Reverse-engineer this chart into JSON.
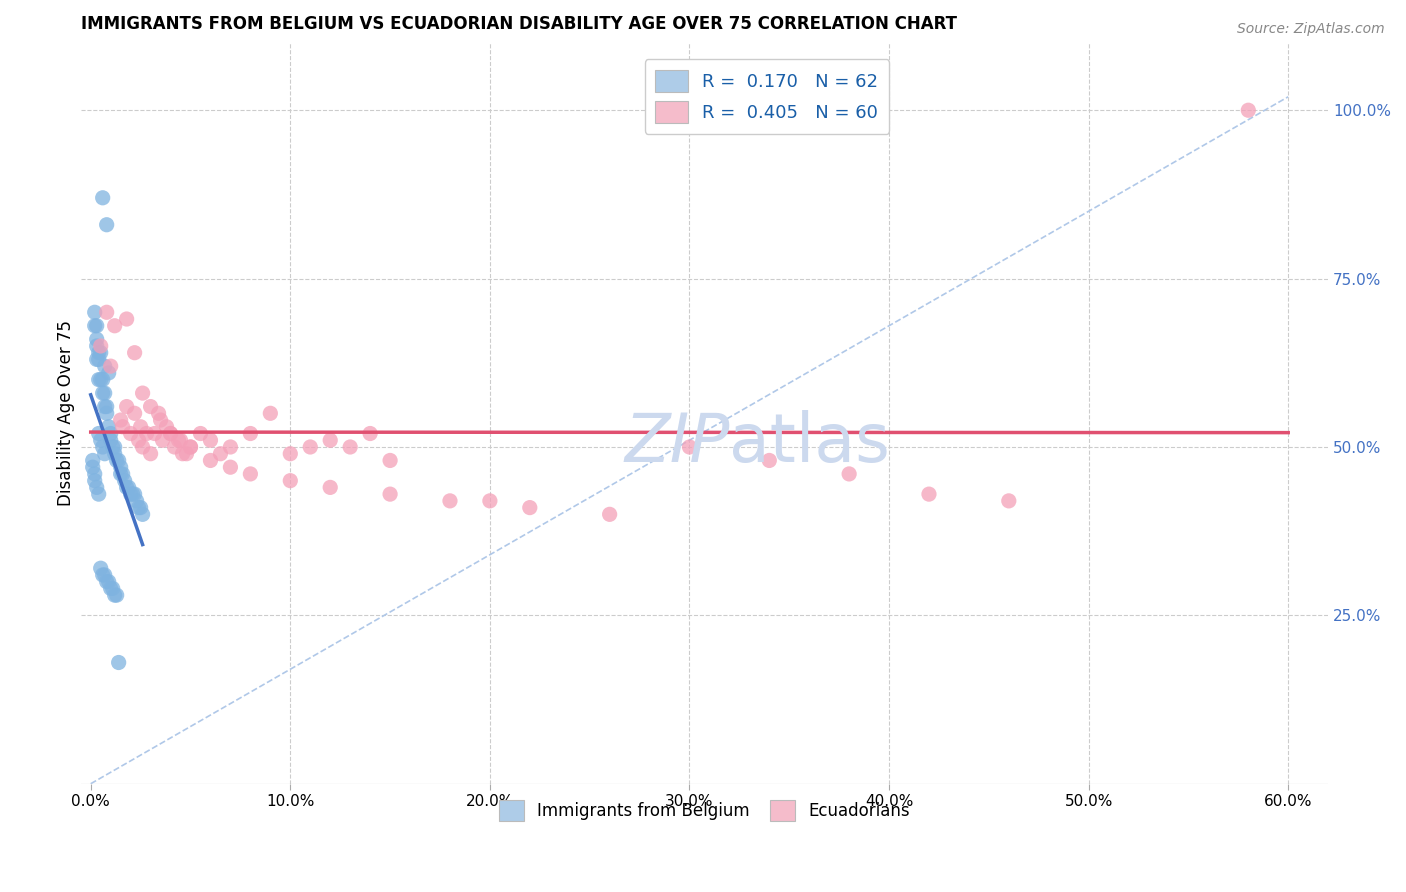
{
  "title": "IMMIGRANTS FROM BELGIUM VS ECUADORIAN DISABILITY AGE OVER 75 CORRELATION CHART",
  "source": "Source: ZipAtlas.com",
  "ylabel": "Disability Age Over 75",
  "x_ticks": [
    "0.0%",
    "10.0%",
    "20.0%",
    "30.0%",
    "40.0%",
    "50.0%",
    "60.0%"
  ],
  "x_tick_vals": [
    0.0,
    0.1,
    0.2,
    0.3,
    0.4,
    0.5,
    0.6
  ],
  "y_ticks_right": [
    "25.0%",
    "50.0%",
    "75.0%",
    "100.0%"
  ],
  "y_tick_vals": [
    0.25,
    0.5,
    0.75,
    1.0
  ],
  "xlim": [
    -0.005,
    0.62
  ],
  "ylim": [
    0.0,
    1.1
  ],
  "legend_R_values": [
    "0.170",
    "0.405"
  ],
  "legend_N_values": [
    "62",
    "60"
  ],
  "blue_color": "#7fb3e0",
  "pink_color": "#f4a0b8",
  "blue_fill": "#aecce8",
  "pink_fill": "#f5bccb",
  "trend_blue_color": "#4472c4",
  "trend_pink_color": "#e05070",
  "diagonal_color": "#b0c8e8",
  "watermark_color": "#ccd9ee",
  "belgium_x": [
    0.006,
    0.008,
    0.003,
    0.004,
    0.005,
    0.007,
    0.009,
    0.002,
    0.003,
    0.004,
    0.006,
    0.007,
    0.008,
    0.002,
    0.003,
    0.003,
    0.004,
    0.005,
    0.006,
    0.007,
    0.008,
    0.009,
    0.01,
    0.01,
    0.011,
    0.012,
    0.012,
    0.013,
    0.014,
    0.015,
    0.015,
    0.016,
    0.017,
    0.018,
    0.019,
    0.02,
    0.021,
    0.022,
    0.023,
    0.024,
    0.025,
    0.026,
    0.001,
    0.001,
    0.002,
    0.002,
    0.003,
    0.004,
    0.005,
    0.006,
    0.007,
    0.008,
    0.009,
    0.01,
    0.011,
    0.012,
    0.013,
    0.014,
    0.004,
    0.005,
    0.006,
    0.007
  ],
  "belgium_y": [
    0.87,
    0.83,
    0.63,
    0.6,
    0.64,
    0.62,
    0.61,
    0.68,
    0.66,
    0.64,
    0.6,
    0.58,
    0.56,
    0.7,
    0.68,
    0.65,
    0.63,
    0.6,
    0.58,
    0.56,
    0.55,
    0.53,
    0.52,
    0.51,
    0.5,
    0.5,
    0.49,
    0.48,
    0.48,
    0.47,
    0.46,
    0.46,
    0.45,
    0.44,
    0.44,
    0.43,
    0.43,
    0.43,
    0.42,
    0.41,
    0.41,
    0.4,
    0.48,
    0.47,
    0.46,
    0.45,
    0.44,
    0.43,
    0.32,
    0.31,
    0.31,
    0.3,
    0.3,
    0.29,
    0.29,
    0.28,
    0.28,
    0.18,
    0.52,
    0.51,
    0.5,
    0.49
  ],
  "ecuador_x": [
    0.005,
    0.008,
    0.01,
    0.012,
    0.015,
    0.016,
    0.018,
    0.02,
    0.022,
    0.024,
    0.025,
    0.026,
    0.028,
    0.03,
    0.032,
    0.034,
    0.036,
    0.038,
    0.04,
    0.042,
    0.044,
    0.046,
    0.048,
    0.05,
    0.055,
    0.06,
    0.065,
    0.07,
    0.08,
    0.09,
    0.1,
    0.11,
    0.12,
    0.13,
    0.14,
    0.15,
    0.018,
    0.022,
    0.026,
    0.03,
    0.035,
    0.04,
    0.045,
    0.05,
    0.06,
    0.07,
    0.08,
    0.1,
    0.12,
    0.15,
    0.18,
    0.2,
    0.22,
    0.26,
    0.3,
    0.34,
    0.38,
    0.42,
    0.46,
    0.58
  ],
  "ecuador_y": [
    0.65,
    0.7,
    0.62,
    0.68,
    0.54,
    0.53,
    0.56,
    0.52,
    0.55,
    0.51,
    0.53,
    0.5,
    0.52,
    0.49,
    0.52,
    0.55,
    0.51,
    0.53,
    0.52,
    0.5,
    0.51,
    0.49,
    0.49,
    0.5,
    0.52,
    0.51,
    0.49,
    0.5,
    0.52,
    0.55,
    0.49,
    0.5,
    0.51,
    0.5,
    0.52,
    0.48,
    0.69,
    0.64,
    0.58,
    0.56,
    0.54,
    0.52,
    0.51,
    0.5,
    0.48,
    0.47,
    0.46,
    0.45,
    0.44,
    0.43,
    0.42,
    0.42,
    0.41,
    0.4,
    0.5,
    0.48,
    0.46,
    0.43,
    0.42,
    1.0
  ]
}
